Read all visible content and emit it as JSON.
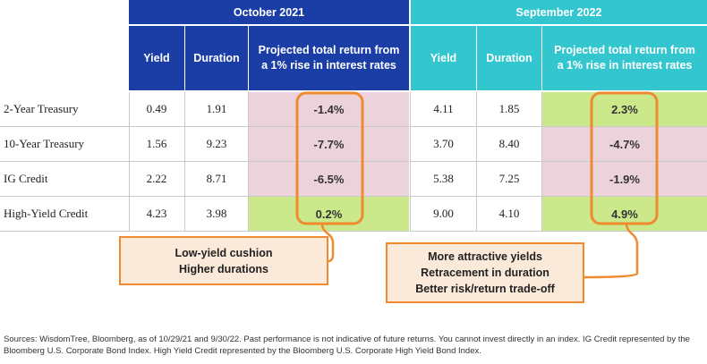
{
  "chart_data": {
    "type": "table",
    "periods": [
      {
        "label": "October 2021",
        "color": "#1a3ea6"
      },
      {
        "label": "September 2022",
        "color": "#34c6cf"
      }
    ],
    "column_headers": {
      "yield": "Yield",
      "duration": "Duration",
      "projected_line1": "Projected total return from",
      "projected_line2": "a 1% rise in interest rates"
    },
    "rows": [
      {
        "label": "2-Year Treasury",
        "oct": {
          "yield": "0.49",
          "duration": "1.91",
          "ret": "-1.4%"
        },
        "sep": {
          "yield": "4.11",
          "duration": "1.85",
          "ret": "2.3%"
        }
      },
      {
        "label": "10-Year Treasury",
        "oct": {
          "yield": "1.56",
          "duration": "9.23",
          "ret": "-7.7%"
        },
        "sep": {
          "yield": "3.70",
          "duration": "8.40",
          "ret": "-4.7%"
        }
      },
      {
        "label": "IG Credit",
        "oct": {
          "yield": "2.22",
          "duration": "8.71",
          "ret": "-6.5%"
        },
        "sep": {
          "yield": "5.38",
          "duration": "7.25",
          "ret": "-1.9%"
        }
      },
      {
        "label": "High-Yield Credit",
        "oct": {
          "yield": "4.23",
          "duration": "3.98",
          "ret": "0.2%"
        },
        "sep": {
          "yield": "9.00",
          "duration": "4.10",
          "ret": "4.9%"
        }
      }
    ],
    "colors": {
      "negative": "#ecd2da",
      "positive": "#cbe88a",
      "highlight": "#f08a2e",
      "note_fill": "#fbe9d9"
    }
  },
  "callouts": {
    "left": {
      "line1": "Low-yield cushion",
      "line2": "Higher durations"
    },
    "right": {
      "line1": "More attractive yields",
      "line2": "Retracement in duration",
      "line3": "Better risk/return trade-off"
    }
  },
  "source": "Sources: WisdomTree, Bloomberg, as of 10/29/21 and 9/30/22. Past performance is not indicative of future returns. You cannot invest directly in an index. IG Credit represented by the Bloomberg U.S. Corporate Bond Index. High Yield Credit represented by the Bloomberg U.S. Corporate High Yield Bond Index."
}
